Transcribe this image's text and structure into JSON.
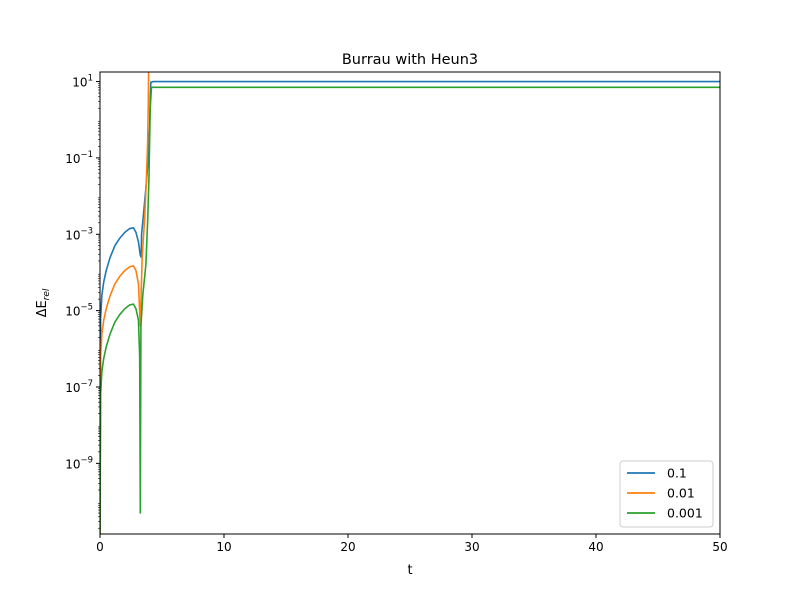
{
  "chart_data": {
    "type": "line",
    "title": "Burrau with Heun3",
    "xlabel": "t",
    "ylabel_base": "ΔE",
    "ylabel_sub": "rel",
    "yscale": "log",
    "xlim": [
      0,
      50
    ],
    "ylim_log10": [
      -10.85,
      1.25
    ],
    "xticks": [
      0,
      10,
      20,
      30,
      40,
      50
    ],
    "xtick_labels": [
      "0",
      "10",
      "20",
      "30",
      "40",
      "50"
    ],
    "yticks_log10": [
      1,
      -1,
      -3,
      -5,
      -7,
      -9
    ],
    "ytick_labels": [
      {
        "base": "10",
        "exp": "1"
      },
      {
        "base": "10",
        "exp": "−1"
      },
      {
        "base": "10",
        "exp": "−3"
      },
      {
        "base": "10",
        "exp": "−5"
      },
      {
        "base": "10",
        "exp": "−7"
      },
      {
        "base": "10",
        "exp": "−9"
      }
    ],
    "legend_position": "lower-right",
    "series": [
      {
        "name": "0.1",
        "color": "#1f77b4",
        "points": [
          [
            0.0,
            -10.85
          ],
          [
            0.05,
            -5.2
          ],
          [
            0.15,
            -4.6
          ],
          [
            0.3,
            -4.25
          ],
          [
            0.5,
            -3.95
          ],
          [
            0.8,
            -3.62
          ],
          [
            1.2,
            -3.3
          ],
          [
            1.6,
            -3.1
          ],
          [
            2.0,
            -2.95
          ],
          [
            2.4,
            -2.85
          ],
          [
            2.7,
            -2.83
          ],
          [
            2.9,
            -2.95
          ],
          [
            3.1,
            -3.2
          ],
          [
            3.25,
            -3.55
          ],
          [
            3.32,
            -3.6
          ],
          [
            3.35,
            -3.0
          ],
          [
            3.5,
            -2.5
          ],
          [
            3.7,
            -1.8
          ],
          [
            3.85,
            -1.2
          ],
          [
            3.95,
            -0.6
          ],
          [
            4.0,
            -0.2
          ],
          [
            4.05,
            0.55
          ],
          [
            4.1,
            0.98
          ],
          [
            4.3,
            1.0
          ],
          [
            50,
            1.0
          ]
        ]
      },
      {
        "name": "0.01",
        "color": "#ff7f0e",
        "points": [
          [
            0.0,
            -10.85
          ],
          [
            0.05,
            -6.2
          ],
          [
            0.15,
            -5.6
          ],
          [
            0.3,
            -5.25
          ],
          [
            0.5,
            -4.95
          ],
          [
            0.8,
            -4.62
          ],
          [
            1.2,
            -4.3
          ],
          [
            1.6,
            -4.1
          ],
          [
            2.0,
            -3.95
          ],
          [
            2.4,
            -3.85
          ],
          [
            2.7,
            -3.83
          ],
          [
            2.9,
            -3.95
          ],
          [
            3.1,
            -4.3
          ],
          [
            3.25,
            -5.4
          ],
          [
            3.3,
            -4.8
          ],
          [
            3.4,
            -3.6
          ],
          [
            3.6,
            -2.6
          ],
          [
            3.75,
            -1.5
          ],
          [
            3.85,
            -0.5
          ],
          [
            3.9,
            0.6
          ],
          [
            3.93,
            1.62
          ],
          [
            4.0,
            1.6
          ],
          [
            50,
            1.6
          ]
        ]
      },
      {
        "name": "0.001",
        "color": "#2ca02c",
        "points": [
          [
            0.0,
            -10.85
          ],
          [
            0.05,
            -7.2
          ],
          [
            0.15,
            -6.6
          ],
          [
            0.3,
            -6.25
          ],
          [
            0.5,
            -5.95
          ],
          [
            0.8,
            -5.62
          ],
          [
            1.2,
            -5.3
          ],
          [
            1.6,
            -5.1
          ],
          [
            2.0,
            -4.95
          ],
          [
            2.4,
            -4.85
          ],
          [
            2.7,
            -4.83
          ],
          [
            2.9,
            -4.95
          ],
          [
            3.1,
            -5.25
          ],
          [
            3.2,
            -6.2
          ],
          [
            3.25,
            -10.3
          ],
          [
            3.3,
            -5.4
          ],
          [
            3.45,
            -4.6
          ],
          [
            3.7,
            -3.8
          ],
          [
            3.85,
            -2.6
          ],
          [
            3.95,
            -1.5
          ],
          [
            4.0,
            -0.6
          ],
          [
            4.05,
            0.3
          ],
          [
            4.15,
            0.85
          ],
          [
            4.3,
            0.85
          ],
          [
            50,
            0.85
          ]
        ]
      }
    ]
  }
}
